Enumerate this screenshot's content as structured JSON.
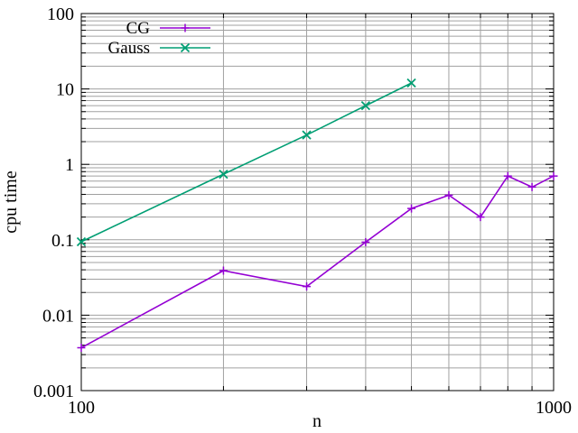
{
  "chart_data": {
    "type": "line",
    "title": "",
    "xlabel": "n",
    "ylabel": "cpu time",
    "xscale": "log",
    "yscale": "log",
    "xlim": [
      100,
      1000
    ],
    "ylim": [
      0.001,
      100
    ],
    "grid": true,
    "legend_position": "top-left",
    "x_ticks": [
      {
        "value": 100,
        "label": "100"
      },
      {
        "value": 1000,
        "label": "1000"
      }
    ],
    "y_ticks": [
      {
        "value": 0.001,
        "label": "0.001"
      },
      {
        "value": 0.01,
        "label": "0.01"
      },
      {
        "value": 0.1,
        "label": "0.1"
      },
      {
        "value": 1,
        "label": "1"
      },
      {
        "value": 10,
        "label": "10"
      },
      {
        "value": 100,
        "label": "100"
      }
    ],
    "series": [
      {
        "name": "CG",
        "color": "#9400d3",
        "marker": "plus",
        "points": [
          {
            "x": 100,
            "y": 0.0037
          },
          {
            "x": 200,
            "y": 0.039
          },
          {
            "x": 300,
            "y": 0.024
          },
          {
            "x": 400,
            "y": 0.093
          },
          {
            "x": 500,
            "y": 0.26
          },
          {
            "x": 600,
            "y": 0.39
          },
          {
            "x": 700,
            "y": 0.2
          },
          {
            "x": 800,
            "y": 0.7
          },
          {
            "x": 900,
            "y": 0.5
          },
          {
            "x": 1000,
            "y": 0.7
          }
        ]
      },
      {
        "name": "Gauss",
        "color": "#009e73",
        "marker": "cross",
        "points": [
          {
            "x": 100,
            "y": 0.094
          },
          {
            "x": 200,
            "y": 0.74
          },
          {
            "x": 300,
            "y": 2.45
          },
          {
            "x": 400,
            "y": 6.0
          },
          {
            "x": 500,
            "y": 12.0
          }
        ]
      }
    ]
  }
}
